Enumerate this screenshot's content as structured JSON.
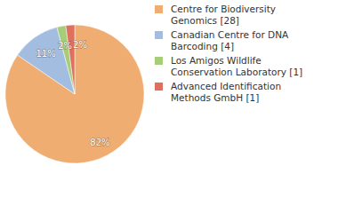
{
  "chart_data": {
    "type": "pie",
    "categories": [
      "Centre for Biodiversity Genomics [28]",
      "Canadian Centre for DNA Barcoding [4]",
      "Los Amigos Wildlife Conservation Laboratory [1]",
      "Advanced Identification Methods GmbH [1]"
    ],
    "values": [
      82,
      11,
      2,
      2
    ],
    "value_labels": [
      "82%",
      "11%",
      "2%",
      "2%"
    ],
    "colors": [
      "#f0ad72",
      "#a3bde0",
      "#a6cd7a",
      "#e0705e"
    ],
    "data_labels": true,
    "legend": "right"
  }
}
